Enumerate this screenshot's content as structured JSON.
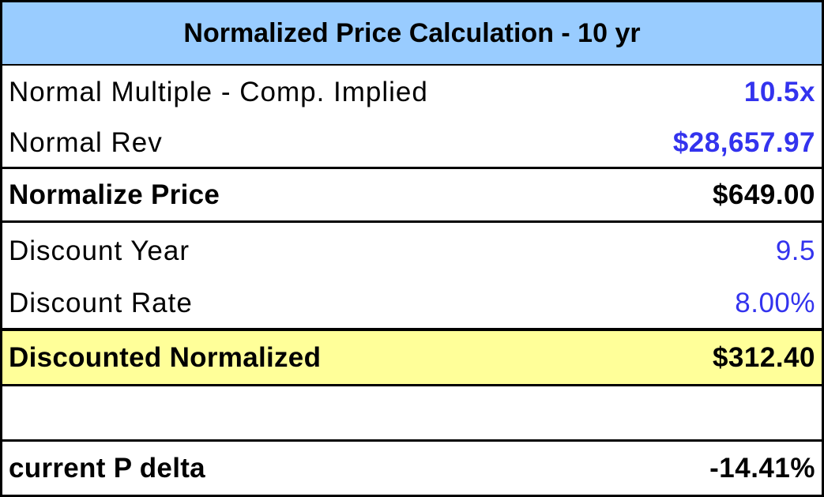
{
  "table": {
    "title": "Normalized Price Calculation - 10 yr",
    "rows": [
      {
        "label": "Normal Multiple - Comp. Implied",
        "value": "10.5x"
      },
      {
        "label": "Normal Rev",
        "value": "$28,657.97"
      },
      {
        "label": "Normalize Price",
        "value": "$649.00"
      },
      {
        "label": "Discount Year",
        "value": "9.5"
      },
      {
        "label": "Discount Rate",
        "value": "8.00%"
      },
      {
        "label": "Discounted Normalized",
        "value": "$312.40"
      },
      {
        "label": "current P delta",
        "value": "-14.41%"
      }
    ]
  }
}
